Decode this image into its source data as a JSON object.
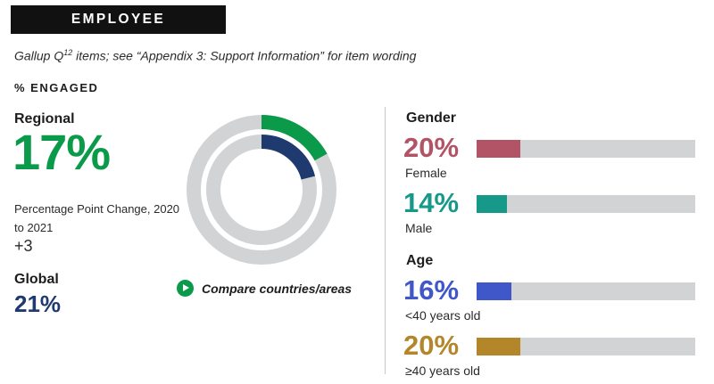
{
  "header": {
    "title": "EMPLOYEE ENGAGEMENT"
  },
  "subtitle": {
    "before": "Gallup Q",
    "sup": "12",
    "after": " items; see “Appendix 3: Support Information” for item wording"
  },
  "section_label": "% ENGAGED",
  "regional": {
    "label": "Regional",
    "value": "17%",
    "change_label": "Percentage Point Change, 2020 to 2021",
    "change_value": "+3"
  },
  "global": {
    "label": "Global",
    "value": "21%"
  },
  "compare_link": {
    "label": "Compare countries/areas",
    "icon": "play-icon"
  },
  "colors": {
    "regional": "#0a9a4a",
    "global": "#1f3a6e",
    "track": "#d1d3d4",
    "female": "#b25366",
    "male": "#17998a",
    "under40": "#3f57c9",
    "over40": "#b3862a"
  },
  "chart_data": [
    {
      "type": "donut",
      "max": 100,
      "series": [
        {
          "name": "Regional",
          "value": 17,
          "ring": "outer"
        },
        {
          "name": "Global",
          "value": 21,
          "ring": "inner"
        }
      ]
    },
    {
      "type": "bar",
      "orientation": "horizontal",
      "max": 100,
      "groups": [
        {
          "label": "Gender",
          "bars": [
            {
              "label": "Female",
              "value": 20,
              "display": "20%",
              "color": "#b25366"
            },
            {
              "label": "Male",
              "value": 14,
              "display": "14%",
              "color": "#17998a"
            }
          ]
        },
        {
          "label": "Age",
          "bars": [
            {
              "label": "<40 years old",
              "value": 16,
              "display": "16%",
              "color": "#3f57c9"
            },
            {
              "label": "≥40 years old",
              "value": 20,
              "display": "20%",
              "color": "#b3862a"
            }
          ]
        }
      ]
    }
  ]
}
